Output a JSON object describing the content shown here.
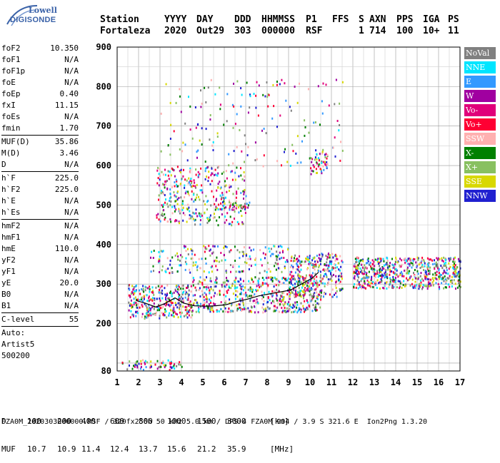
{
  "logo": {
    "top_text": "Lowell",
    "bottom_text": "DIGISONDE"
  },
  "header": {
    "labels": [
      "Station",
      "YYYY",
      "DAY",
      "DDD",
      "HHMMSS",
      "P1",
      "FFS",
      "S",
      "AXN",
      "PPS",
      "IGA",
      "PS"
    ],
    "values": [
      "Fortaleza",
      "2020",
      "Out29",
      "303",
      "000000",
      "RSF",
      "",
      "1",
      "714",
      "100",
      "10+",
      "11"
    ]
  },
  "parameters": {
    "group1": [
      {
        "label": "foF2",
        "value": "10.350"
      },
      {
        "label": "foF1",
        "value": "N/A"
      },
      {
        "label": "foF1p",
        "value": "N/A"
      },
      {
        "label": "foE",
        "value": "N/A"
      },
      {
        "label": "foEp",
        "value": "0.40"
      },
      {
        "label": "fxI",
        "value": "11.15"
      },
      {
        "label": "foEs",
        "value": "N/A"
      },
      {
        "label": "fmin",
        "value": "1.70"
      }
    ],
    "group2": [
      {
        "label": "MUF(D)",
        "value": "35.86"
      },
      {
        "label": "M(D)",
        "value": "3.46"
      },
      {
        "label": "D",
        "value": "N/A"
      }
    ],
    "group3": [
      {
        "label": "h`F",
        "value": "225.0"
      },
      {
        "label": "h`F2",
        "value": "225.0"
      },
      {
        "label": "h`E",
        "value": "N/A"
      },
      {
        "label": "h`Es",
        "value": "N/A"
      }
    ],
    "group4": [
      {
        "label": "hmF2",
        "value": "N/A"
      },
      {
        "label": "hmF1",
        "value": "N/A"
      },
      {
        "label": "hmE",
        "value": "110.0"
      },
      {
        "label": "yF2",
        "value": "N/A"
      },
      {
        "label": "yF1",
        "value": "N/A"
      },
      {
        "label": "yE",
        "value": "20.0"
      },
      {
        "label": "B0",
        "value": "N/A"
      },
      {
        "label": "B1",
        "value": "N/A"
      }
    ],
    "group5": [
      {
        "label": "C-level",
        "value": "55"
      }
    ],
    "extra": [
      "Auto:",
      "Artist5",
      "500200"
    ]
  },
  "legend": [
    {
      "label": "NoVal",
      "color": "#808080"
    },
    {
      "label": "NNE",
      "color": "#00e5ff"
    },
    {
      "label": "E",
      "color": "#3399ff"
    },
    {
      "label": "W",
      "color": "#a000a0"
    },
    {
      "label": "Vo-",
      "color": "#e0007a"
    },
    {
      "label": "Vo+",
      "color": "#ff0033"
    },
    {
      "label": "SSW",
      "color": "#ffb0b0"
    },
    {
      "label": "X-",
      "color": "#008000"
    },
    {
      "label": "X+",
      "color": "#88c060"
    },
    {
      "label": "SSE",
      "color": "#d8d800"
    },
    {
      "label": "NNW",
      "color": "#2020d0"
    }
  ],
  "footer": {
    "row1_label": "D",
    "row1_values": [
      "100",
      "200",
      "400",
      "600",
      "800",
      "1000",
      "1500",
      "3000",
      "[km]"
    ],
    "row2_label": "MUF",
    "row2_values": [
      "10.7",
      "10.9",
      "11.4",
      "12.4",
      "13.7",
      "15.6",
      "21.2",
      "35.9",
      "[MHz]"
    ],
    "status": "FZA0M_2020303000000.RSF / 320fx256h 50 kHz 5.0 km / DPS-4 FZA0M 904 / 3.9 S 321.6 E  Ion2Png 1.3.20"
  },
  "chart_data": {
    "type": "scatter",
    "xlim": [
      1,
      17
    ],
    "ylim": [
      80,
      900
    ],
    "x_ticks": [
      1,
      2,
      3,
      4,
      5,
      6,
      7,
      8,
      9,
      10,
      11,
      12,
      13,
      14,
      15,
      16,
      17
    ],
    "y_ticks": [
      80,
      200,
      300,
      400,
      500,
      600,
      700,
      800,
      900
    ],
    "grid": true,
    "legend_position": "right",
    "clusters": [
      {
        "name": "Es",
        "x": [
          1.2,
          4.0
        ],
        "y": [
          85,
          110
        ],
        "density": 0.5
      },
      {
        "name": "F-low",
        "x": [
          1.5,
          4.5
        ],
        "y": [
          215,
          300
        ],
        "density": 0.7
      },
      {
        "name": "F-rising",
        "x": [
          4.5,
          10.5
        ],
        "y": [
          230,
          320
        ],
        "density": 0.55
      },
      {
        "name": "F-trace",
        "x": [
          9.0,
          11.5
        ],
        "y": [
          270,
          380
        ],
        "density": 0.6
      },
      {
        "name": "F2-high",
        "x": [
          12.0,
          17.0
        ],
        "y": [
          290,
          370
        ],
        "density": 0.85
      },
      {
        "name": "spread-mid",
        "x": [
          2.5,
          9.0
        ],
        "y": [
          330,
          400
        ],
        "density": 0.25
      },
      {
        "name": "multi-upper",
        "x": [
          2.8,
          7.0
        ],
        "y": [
          450,
          600
        ],
        "density": 0.3
      },
      {
        "name": "multi-trace",
        "x": [
          5.5,
          7.5
        ],
        "y": [
          490,
          510
        ],
        "density": 0.6
      },
      {
        "name": "scatter-top",
        "x": [
          3.0,
          11.5
        ],
        "y": [
          600,
          820
        ],
        "density": 0.05
      },
      {
        "name": "cluster-10",
        "x": [
          10.0,
          10.8
        ],
        "y": [
          580,
          640
        ],
        "density": 0.5
      }
    ],
    "trace_line": {
      "x": [
        1.9,
        2.3,
        2.8,
        3.2,
        3.7,
        4.1,
        4.6,
        5.1,
        5.6,
        6.1,
        6.6,
        7.1,
        7.6,
        8.1,
        8.6,
        9.1,
        9.6,
        10.1,
        10.4
      ],
      "y": [
        258,
        252,
        242,
        250,
        265,
        252,
        245,
        244,
        245,
        248,
        256,
        262,
        270,
        275,
        280,
        285,
        300,
        315,
        330
      ]
    }
  }
}
